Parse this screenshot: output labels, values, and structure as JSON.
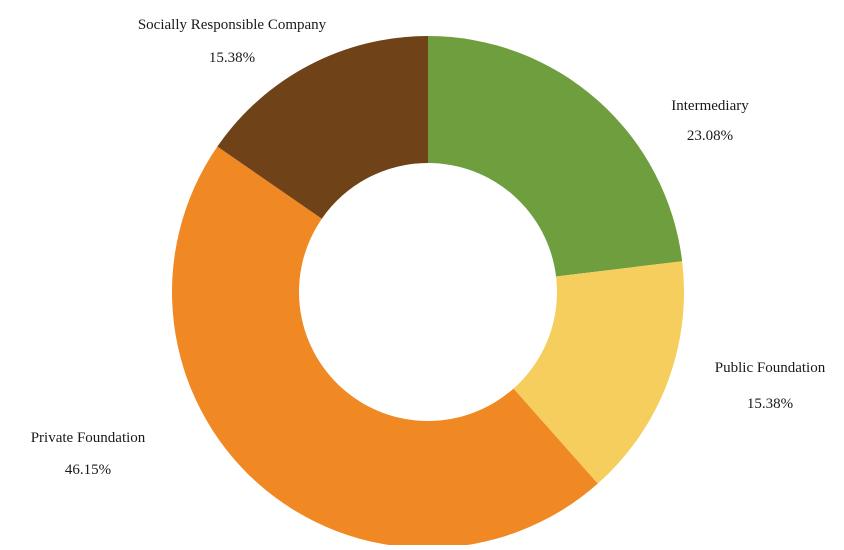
{
  "chart_data": {
    "type": "pie",
    "variant": "donut",
    "categories": [
      "Intermediary",
      "Public Foundation",
      "Private Foundation",
      "Socially Responsible Company"
    ],
    "values": [
      23.08,
      15.38,
      46.15,
      15.38
    ],
    "value_labels": [
      "23.08%",
      "15.38%",
      "46.15%",
      "15.38%"
    ],
    "colors": [
      "#6f9e3e",
      "#f5ce5e",
      "#f08823",
      "#6f4217"
    ],
    "start_angle_deg": 0,
    "direction": "clockwise",
    "legend": "none",
    "title": ""
  }
}
